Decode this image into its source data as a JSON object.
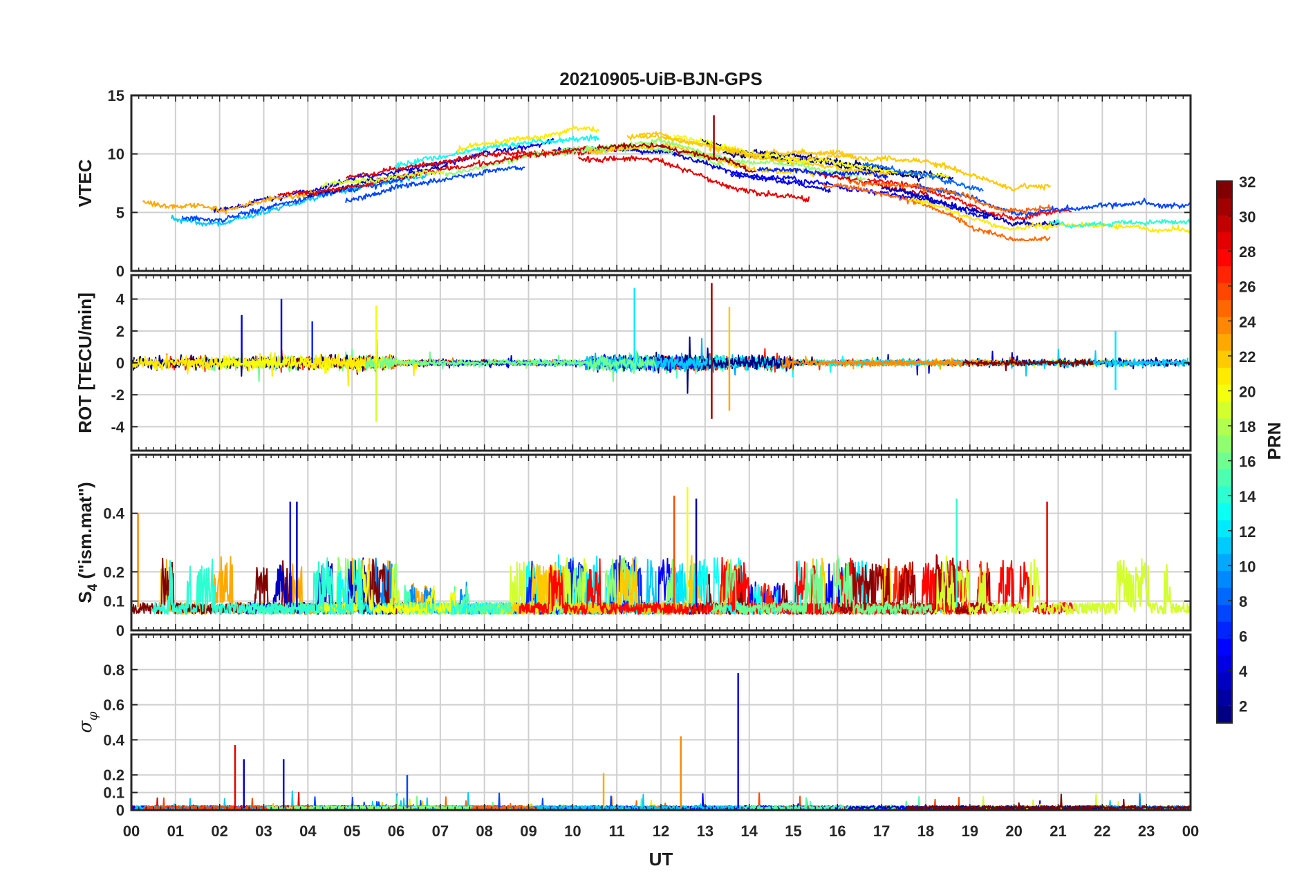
{
  "chart_data": {
    "title": "20210905-UiB-BJN-GPS",
    "type": "line",
    "xlabel": "UT",
    "x_tick_labels": [
      "00",
      "01",
      "02",
      "03",
      "04",
      "05",
      "06",
      "07",
      "08",
      "09",
      "10",
      "11",
      "12",
      "13",
      "14",
      "15",
      "16",
      "17",
      "18",
      "19",
      "20",
      "21",
      "22",
      "23",
      "00"
    ],
    "xlim_hours": [
      0,
      24
    ],
    "colorbar": {
      "label": "PRN",
      "range": [
        1,
        32
      ],
      "ticks": [
        "2",
        "4",
        "6",
        "8",
        "10",
        "12",
        "14",
        "16",
        "18",
        "20",
        "22",
        "24",
        "26",
        "28",
        "30",
        "32"
      ],
      "colormap": "jet"
    },
    "panels": [
      {
        "id": "vtec",
        "ylabel": "VTEC",
        "ylim": [
          0,
          15
        ],
        "y_ticks": [
          0,
          5,
          10,
          15
        ],
        "y_tick_labels": [
          "0",
          "5",
          "10",
          "15"
        ],
        "description": "Vertical TEC per satellite; diurnal envelope rising from ~5 TECU near 00 UT to ~10-11 TECU around 09-13 UT and falling to ~4-6 TECU by 20-24 UT",
        "envelope_hours": [
          0,
          2,
          4,
          6,
          8,
          10,
          12,
          14,
          16,
          18,
          20,
          22,
          24
        ],
        "envelope_tecu": [
          5.5,
          4.8,
          6.5,
          8.0,
          9.5,
          10.5,
          10.8,
          9.0,
          8.3,
          7.2,
          5.0,
          5.5,
          5.5
        ],
        "spike": {
          "hour": 13.2,
          "value": 13.3
        }
      },
      {
        "id": "rot",
        "ylabel": "ROT [TECU/min]",
        "ylim": [
          -5.5,
          5.5
        ],
        "y_ticks": [
          -4,
          -2,
          0,
          2,
          4
        ],
        "y_tick_labels": [
          "-4",
          "-2",
          "0",
          "2",
          "4"
        ],
        "description": "Rate of TEC; enhanced activity 00-06 UT and 10-15 UT",
        "peaks": [
          {
            "hour": 2.5,
            "value": 3.0,
            "prn": 4
          },
          {
            "hour": 3.4,
            "value": 4.0,
            "prn": 3
          },
          {
            "hour": 4.1,
            "value": 2.6,
            "prn": 6
          },
          {
            "hour": 5.55,
            "value": 3.6,
            "prn": 20
          },
          {
            "hour": 5.55,
            "value": -3.7,
            "prn": 19
          },
          {
            "hour": 11.4,
            "value": 4.7,
            "prn": 12
          },
          {
            "hour": 13.15,
            "value": 5.0,
            "prn": 31
          },
          {
            "hour": 13.15,
            "value": -3.5,
            "prn": 31
          },
          {
            "hour": 13.55,
            "value": 3.5,
            "prn": 22
          },
          {
            "hour": 13.55,
            "value": -3.0,
            "prn": 23
          },
          {
            "hour": 22.3,
            "value": 2.0,
            "prn": 12
          },
          {
            "hour": 22.3,
            "value": -1.7,
            "prn": 12
          }
        ]
      },
      {
        "id": "s4",
        "ylabel": "S4 (\"ism.mat\")",
        "ylabel_main": "S",
        "ylabel_sub": "4",
        "ylabel_rest": " (\"ism.mat\")",
        "ylim": [
          0,
          0.6
        ],
        "y_ticks": [
          0,
          0.1,
          0.2,
          0.4
        ],
        "y_tick_labels": [
          "0",
          "0.1",
          "0.2",
          "0.4"
        ],
        "description": "Amplitude scintillation index; background ~0.05-0.1 with bursts up to ~0.45-0.49",
        "peaks": [
          {
            "hour": 0.15,
            "value": 0.4,
            "prn": 24
          },
          {
            "hour": 3.6,
            "value": 0.44,
            "prn": 5
          },
          {
            "hour": 3.75,
            "value": 0.44,
            "prn": 3
          },
          {
            "hour": 12.3,
            "value": 0.46,
            "prn": 26
          },
          {
            "hour": 12.6,
            "value": 0.49,
            "prn": 20
          },
          {
            "hour": 12.8,
            "value": 0.45,
            "prn": 2
          },
          {
            "hour": 18.7,
            "value": 0.45,
            "prn": 14
          },
          {
            "hour": 20.75,
            "value": 0.44,
            "prn": 29
          }
        ]
      },
      {
        "id": "sigma_phi",
        "ylabel": "σφ",
        "ylabel_main": "σ",
        "ylabel_sub": "φ",
        "ylim": [
          0,
          1.0
        ],
        "y_ticks": [
          0,
          0.1,
          0.2,
          0.4,
          0.6,
          0.8
        ],
        "y_tick_labels": [
          "0",
          "0.1",
          "0.2",
          "0.4",
          "0.6",
          "0.8"
        ],
        "description": "Phase scintillation index; mostly below 0.05 with isolated spikes",
        "peaks": [
          {
            "hour": 2.35,
            "value": 0.37,
            "prn": 29
          },
          {
            "hour": 2.55,
            "value": 0.29,
            "prn": 3
          },
          {
            "hour": 3.45,
            "value": 0.29,
            "prn": 3
          },
          {
            "hour": 6.25,
            "value": 0.2,
            "prn": 7
          },
          {
            "hour": 10.7,
            "value": 0.21,
            "prn": 23
          },
          {
            "hour": 12.45,
            "value": 0.42,
            "prn": 24
          },
          {
            "hour": 13.75,
            "value": 0.78,
            "prn": 4
          }
        ]
      }
    ]
  }
}
